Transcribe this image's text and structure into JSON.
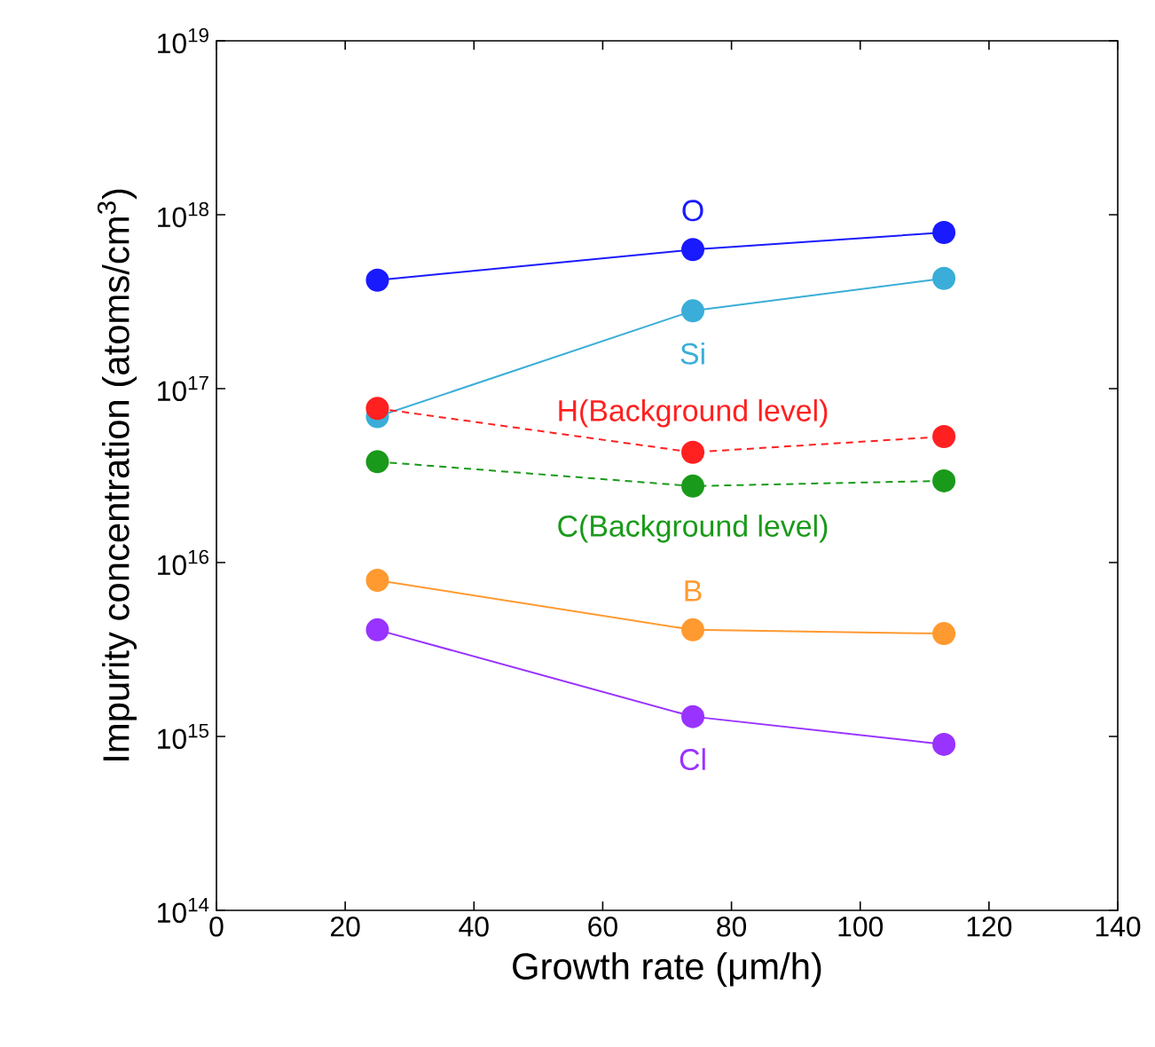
{
  "chart_data": {
    "type": "line",
    "xlabel": "Growth rate (μm/h)",
    "ylabel": "Impurity concentration (atoms/cm$^{3}$)",
    "x": [
      25,
      74,
      113
    ],
    "series": [
      {
        "name": "O",
        "color": "#1a1aff",
        "line_style": "solid",
        "values": [
          4.2e+17,
          6.3e+17,
          7.9e+17
        ]
      },
      {
        "name": "Si",
        "color": "#3aaed8",
        "line_style": "solid",
        "values": [
          6.9e+16,
          2.8e+17,
          4.3e+17
        ]
      },
      {
        "name": "H(Background level)",
        "color": "#ff2020",
        "line_style": "dashed",
        "values": [
          7.7e+16,
          4.3e+16,
          5.3e+16
        ]
      },
      {
        "name": "C(Background level)",
        "color": "#1a9a1a",
        "line_style": "dashed",
        "values": [
          3.8e+16,
          2.75e+16,
          2.95e+16
        ]
      },
      {
        "name": "B",
        "color": "#ff9a30",
        "line_style": "solid",
        "values": [
          7900000000000000.0,
          4100000000000000.0,
          3900000000000000.0
        ]
      },
      {
        "name": "Cl",
        "color": "#9933ff",
        "line_style": "solid",
        "values": [
          4100000000000000.0,
          1300000000000000.0,
          900000000000000.0
        ]
      }
    ],
    "marker": "circle",
    "log": "y",
    "grid": false,
    "xlim": [
      0,
      140
    ],
    "xticks": [
      0,
      20,
      40,
      60,
      80,
      100,
      120,
      140
    ],
    "ylim": [
      100000000000000.0,
      1e+19
    ],
    "yticks": [
      {
        "value": 100000000000000.0,
        "label": "10$^{14}$"
      },
      {
        "value": 1000000000000000.0,
        "label": "10$^{15}$"
      },
      {
        "value": 1e+16,
        "label": "10$^{16}$"
      },
      {
        "value": 1e+17,
        "label": "10$^{17}$"
      },
      {
        "value": 1e+18,
        "label": "10$^{18}$"
      },
      {
        "value": 1e+19,
        "label": "10$^{19}$"
      }
    ]
  }
}
